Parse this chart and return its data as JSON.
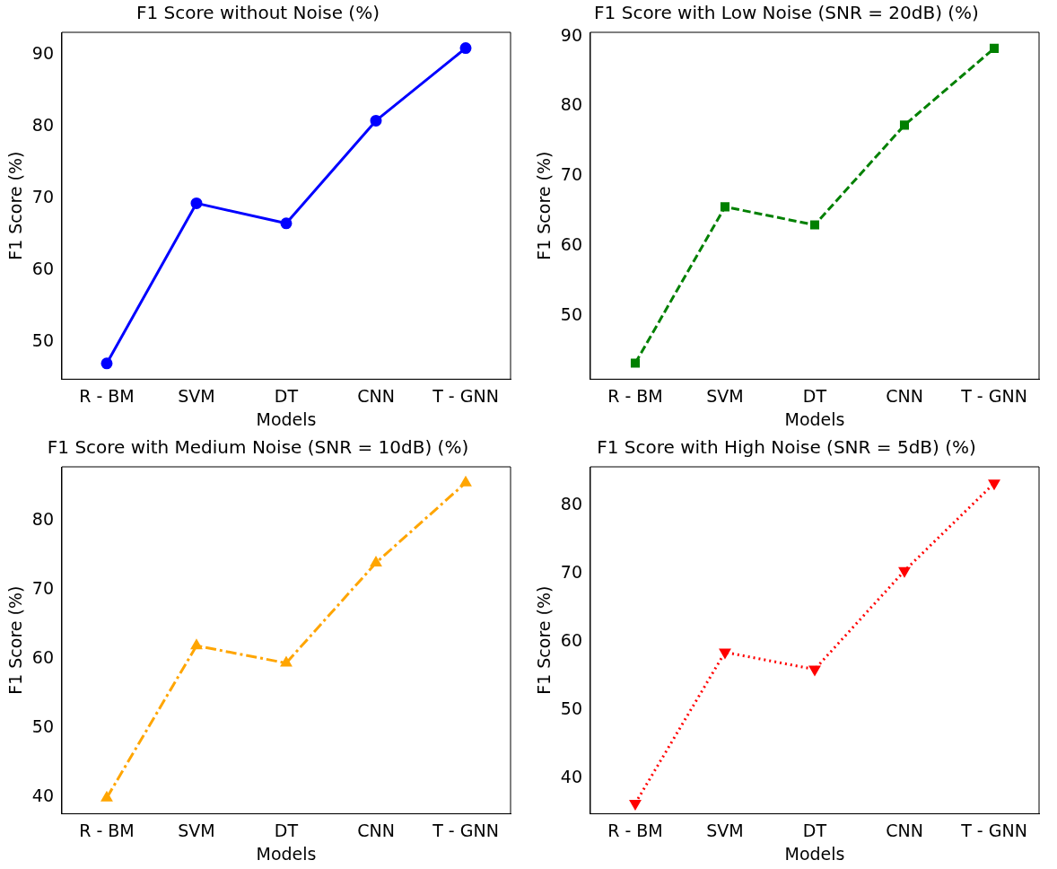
{
  "chart_data": [
    {
      "type": "line",
      "title": "F1 Score without Noise (%)",
      "xlabel": "Models",
      "ylabel": "F1 Score (%)",
      "categories": [
        "R - BM",
        "SVM",
        "DT",
        "CNN",
        "T - GNN"
      ],
      "series": [
        {
          "color": "#0000ff",
          "values": [
            47.0,
            69.3,
            66.5,
            80.8,
            90.9
          ],
          "marker": "circle",
          "line_style": "solid"
        }
      ],
      "ylim": [
        44.8,
        93.1
      ],
      "yticks": [
        50,
        60,
        70,
        80,
        90
      ],
      "grid": false,
      "legend": false
    },
    {
      "type": "line",
      "title": "F1 Score with Low Noise (SNR = 20dB) (%)",
      "xlabel": "Models",
      "ylabel": "F1 Score (%)",
      "categories": [
        "R - BM",
        "SVM",
        "DT",
        "CNN",
        "T - GNN"
      ],
      "series": [
        {
          "color": "#008000",
          "values": [
            43.2,
            65.6,
            63.0,
            77.3,
            88.3
          ],
          "marker": "square",
          "line_style": "dashed"
        }
      ],
      "ylim": [
        40.9,
        90.6
      ],
      "yticks": [
        50,
        60,
        70,
        80,
        90
      ],
      "grid": false,
      "legend": false
    },
    {
      "type": "line",
      "title": "F1 Score with Medium Noise (SNR = 10dB) (%)",
      "xlabel": "Models",
      "ylabel": "F1 Score (%)",
      "categories": [
        "R - BM",
        "SVM",
        "DT",
        "CNN",
        "T - GNN"
      ],
      "series": [
        {
          "color": "#ffa500",
          "values": [
            39.9,
            61.9,
            59.4,
            73.9,
            85.5
          ],
          "marker": "triangle",
          "line_style": "dashdot"
        }
      ],
      "ylim": [
        37.6,
        87.8
      ],
      "yticks": [
        40,
        50,
        60,
        70,
        80
      ],
      "grid": false,
      "legend": false
    },
    {
      "type": "line",
      "title": "F1 Score with High Noise (SNR = 5dB) (%)",
      "xlabel": "Models",
      "ylabel": "F1 Score (%)",
      "categories": [
        "R - BM",
        "SVM",
        "DT",
        "CNN",
        "T - GNN"
      ],
      "series": [
        {
          "color": "#ff0000",
          "values": [
            36.4,
            58.5,
            56.0,
            70.4,
            83.2
          ],
          "marker": "triangle-down",
          "line_style": "dotted"
        }
      ],
      "ylim": [
        34.9,
        85.6
      ],
      "yticks": [
        40,
        50,
        60,
        70,
        80
      ],
      "grid": false,
      "legend": false
    }
  ]
}
